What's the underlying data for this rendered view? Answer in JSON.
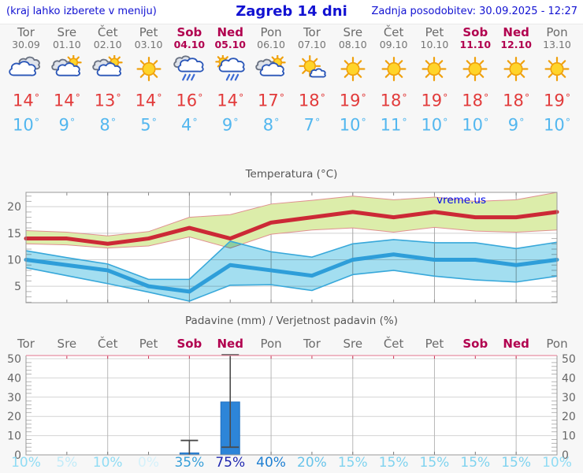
{
  "header": {
    "left_note": "(kraj lahko izberete v meniju)",
    "title": "Zagreb 14 dni",
    "updated": "Zadnja posodobitev: 30.09.2025 - 12:27"
  },
  "degree_symbol": "°",
  "colors": {
    "header_text": "#1212d2",
    "weekend": "#b1014f",
    "weekday": "#6b6b6b",
    "tmax_text": "#e23b3b",
    "tmin_text": "#53b7ef",
    "max_line": "#cc2936",
    "max_band": "#dcedaa",
    "max_band_edge": "#e09090",
    "min_line": "#2e9ed9",
    "min_band": "#a3def0",
    "min_band_edge": "#38a8da",
    "bar": "#2d85d8",
    "whisker": "#4a4a4a",
    "precip_top_axis": "#e78fa3",
    "frame": "#999999"
  },
  "days": [
    {
      "name": "Tor",
      "date": "30.09",
      "weekend": false,
      "icon": "cloudy",
      "tmax": "14",
      "tmin": "10",
      "pop": "10%",
      "pop_color": "#90dcf4"
    },
    {
      "name": "Sre",
      "date": "01.10",
      "weekend": false,
      "icon": "partly-cloudy",
      "tmax": "14",
      "tmin": "9",
      "pop": "5%",
      "pop_color": "#c2ebf8"
    },
    {
      "name": "Čet",
      "date": "02.10",
      "weekend": false,
      "icon": "partly-cloudy",
      "tmax": "13",
      "tmin": "8",
      "pop": "10%",
      "pop_color": "#90dcf4"
    },
    {
      "name": "Pet",
      "date": "03.10",
      "weekend": false,
      "icon": "sunny",
      "tmax": "14",
      "tmin": "5",
      "pop": "0%",
      "pop_color": "#d5f1fa"
    },
    {
      "name": "Sob",
      "date": "04.10",
      "weekend": true,
      "icon": "rain",
      "tmax": "16",
      "tmin": "4",
      "pop": "35%",
      "pop_color": "#379fd9"
    },
    {
      "name": "Ned",
      "date": "05.10",
      "weekend": true,
      "icon": "sun-rain",
      "tmax": "14",
      "tmin": "9",
      "pop": "75%",
      "pop_color": "#2028b0"
    },
    {
      "name": "Pon",
      "date": "06.10",
      "weekend": false,
      "icon": "partly-cloudy",
      "tmax": "17",
      "tmin": "8",
      "pop": "40%",
      "pop_color": "#1e7fd2"
    },
    {
      "name": "Tor",
      "date": "07.10",
      "weekend": false,
      "icon": "mostly-sunny",
      "tmax": "18",
      "tmin": "7",
      "pop": "20%",
      "pop_color": "#68c4ea"
    },
    {
      "name": "Sre",
      "date": "08.10",
      "weekend": false,
      "icon": "sunny",
      "tmax": "19",
      "tmin": "10",
      "pop": "15%",
      "pop_color": "#7fd3ef"
    },
    {
      "name": "Čet",
      "date": "09.10",
      "weekend": false,
      "icon": "sunny",
      "tmax": "18",
      "tmin": "11",
      "pop": "15%",
      "pop_color": "#7fd3ef"
    },
    {
      "name": "Pet",
      "date": "10.10",
      "weekend": false,
      "icon": "sunny",
      "tmax": "19",
      "tmin": "10",
      "pop": "15%",
      "pop_color": "#7fd3ef"
    },
    {
      "name": "Sob",
      "date": "11.10",
      "weekend": true,
      "icon": "sunny",
      "tmax": "18",
      "tmin": "10",
      "pop": "15%",
      "pop_color": "#7fd3ef"
    },
    {
      "name": "Ned",
      "date": "12.10",
      "weekend": true,
      "icon": "sunny",
      "tmax": "18",
      "tmin": "9",
      "pop": "15%",
      "pop_color": "#7fd3ef"
    },
    {
      "name": "Pon",
      "date": "13.10",
      "weekend": false,
      "icon": "sunny",
      "tmax": "19",
      "tmin": "10",
      "pop": "10%",
      "pop_color": "#90dcf4"
    }
  ],
  "temp_chart": {
    "title": "Temperatura (°C)",
    "watermark": "vreme.us",
    "yticks": [
      5,
      10,
      15,
      20
    ]
  },
  "precip_chart": {
    "title": "Padavine (mm) / Verjetnost padavin (%)",
    "yticks": [
      0,
      10,
      20,
      30,
      40,
      50
    ]
  },
  "chart_data": [
    {
      "type": "line",
      "title": "Temperatura (°C)",
      "categories": [
        "Tor 30.09",
        "Sre 01.10",
        "Čet 02.10",
        "Pet 03.10",
        "Sob 04.10",
        "Ned 05.10",
        "Pon 06.10",
        "Tor 07.10",
        "Sre 08.10",
        "Čet 09.10",
        "Pet 10.10",
        "Sob 11.10",
        "Ned 12.10",
        "Pon 13.10"
      ],
      "ylim": [
        1.9,
        22.7
      ],
      "yticks": [
        5,
        10,
        15,
        20
      ],
      "grid": true,
      "legend": "none",
      "series": [
        {
          "name": "max",
          "color": "#cc2936",
          "values": [
            14,
            14,
            13,
            14,
            16,
            14,
            17,
            18,
            19,
            18,
            19,
            18,
            18,
            19
          ]
        },
        {
          "name": "max_band_high",
          "color": "#dcedaa",
          "values": [
            15.5,
            15.2,
            14.5,
            15.3,
            18.0,
            18.5,
            20.5,
            21.2,
            22.0,
            21.3,
            21.8,
            21.0,
            21.3,
            22.7
          ]
        },
        {
          "name": "max_band_low",
          "color": "#dcedaa",
          "values": [
            13.0,
            12.8,
            12.2,
            12.6,
            14.3,
            12.2,
            14.8,
            15.6,
            16.0,
            15.2,
            16.1,
            15.4,
            15.2,
            15.6
          ]
        },
        {
          "name": "min",
          "color": "#2e9ed9",
          "values": [
            10,
            9,
            8,
            5,
            4,
            9,
            8,
            7,
            10,
            11,
            10,
            10,
            9,
            10
          ]
        },
        {
          "name": "min_band_high",
          "color": "#a3def0",
          "values": [
            11.7,
            10.4,
            9.2,
            6.3,
            6.3,
            13.5,
            11.5,
            10.5,
            13.0,
            13.8,
            13.2,
            13.2,
            12.1,
            13.3
          ]
        },
        {
          "name": "min_band_low",
          "color": "#a3def0",
          "values": [
            8.5,
            7.0,
            5.5,
            3.9,
            2.2,
            5.2,
            5.3,
            4.2,
            7.2,
            8.0,
            6.9,
            6.2,
            5.8,
            6.9
          ]
        }
      ]
    },
    {
      "type": "bar",
      "title": "Padavine (mm) / Verjetnost padavin (%)",
      "categories": [
        "Tor",
        "Sre",
        "Čet",
        "Pet",
        "Sob",
        "Ned",
        "Pon",
        "Tor",
        "Sre",
        "Čet",
        "Pet",
        "Sob",
        "Ned",
        "Pon"
      ],
      "values": [
        0,
        0,
        0,
        0,
        1,
        27.5,
        0,
        0,
        0,
        0,
        0,
        0,
        0,
        0
      ],
      "whisker_low": [
        null,
        null,
        null,
        null,
        0,
        4,
        null,
        null,
        null,
        null,
        null,
        null,
        null,
        null
      ],
      "whisker_high": [
        null,
        null,
        null,
        null,
        7.5,
        52,
        null,
        null,
        null,
        null,
        null,
        null,
        null,
        null
      ],
      "probabilities_percent": [
        10,
        5,
        10,
        0,
        35,
        75,
        40,
        20,
        15,
        15,
        15,
        15,
        15,
        10
      ],
      "ylim": [
        0,
        51.6
      ],
      "yticks": [
        0,
        10,
        20,
        30,
        40,
        50
      ],
      "grid": true
    }
  ]
}
